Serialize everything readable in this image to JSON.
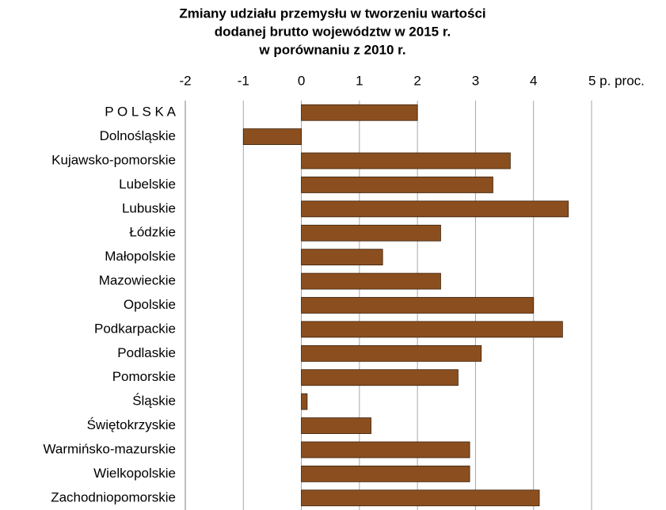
{
  "chart_data": {
    "type": "bar",
    "orientation": "horizontal",
    "title": [
      "Zmiany udziału przemysłu w tworzeniu wartości",
      "dodanej brutto województw w 2015 r.",
      "w porównaniu z 2010 r."
    ],
    "categories": [
      "P O L S K A",
      "Dolnośląskie",
      "Kujawsko-pomorskie",
      "Lubelskie",
      "Lubuskie",
      "Łódzkie",
      "Małopolskie",
      "Mazowieckie",
      "Opolskie",
      "Podkarpackie",
      "Podlaskie",
      "Pomorskie",
      "Śląskie",
      "Świętokrzyskie",
      "Warmińsko-mazurskie",
      "Wielkopolskie",
      "Zachodniopomorskie"
    ],
    "values": [
      2.0,
      -1.0,
      3.6,
      3.3,
      4.6,
      2.4,
      1.4,
      2.4,
      4.0,
      4.5,
      3.1,
      2.7,
      0.1,
      1.2,
      2.9,
      2.9,
      4.1
    ],
    "color": "#8b4f1f",
    "xlim": [
      -2,
      5
    ],
    "xticks": [
      -2,
      -1,
      0,
      1,
      2,
      3,
      4,
      {
        "value": 5,
        "label": "5 p. proc."
      }
    ],
    "grid": true
  }
}
